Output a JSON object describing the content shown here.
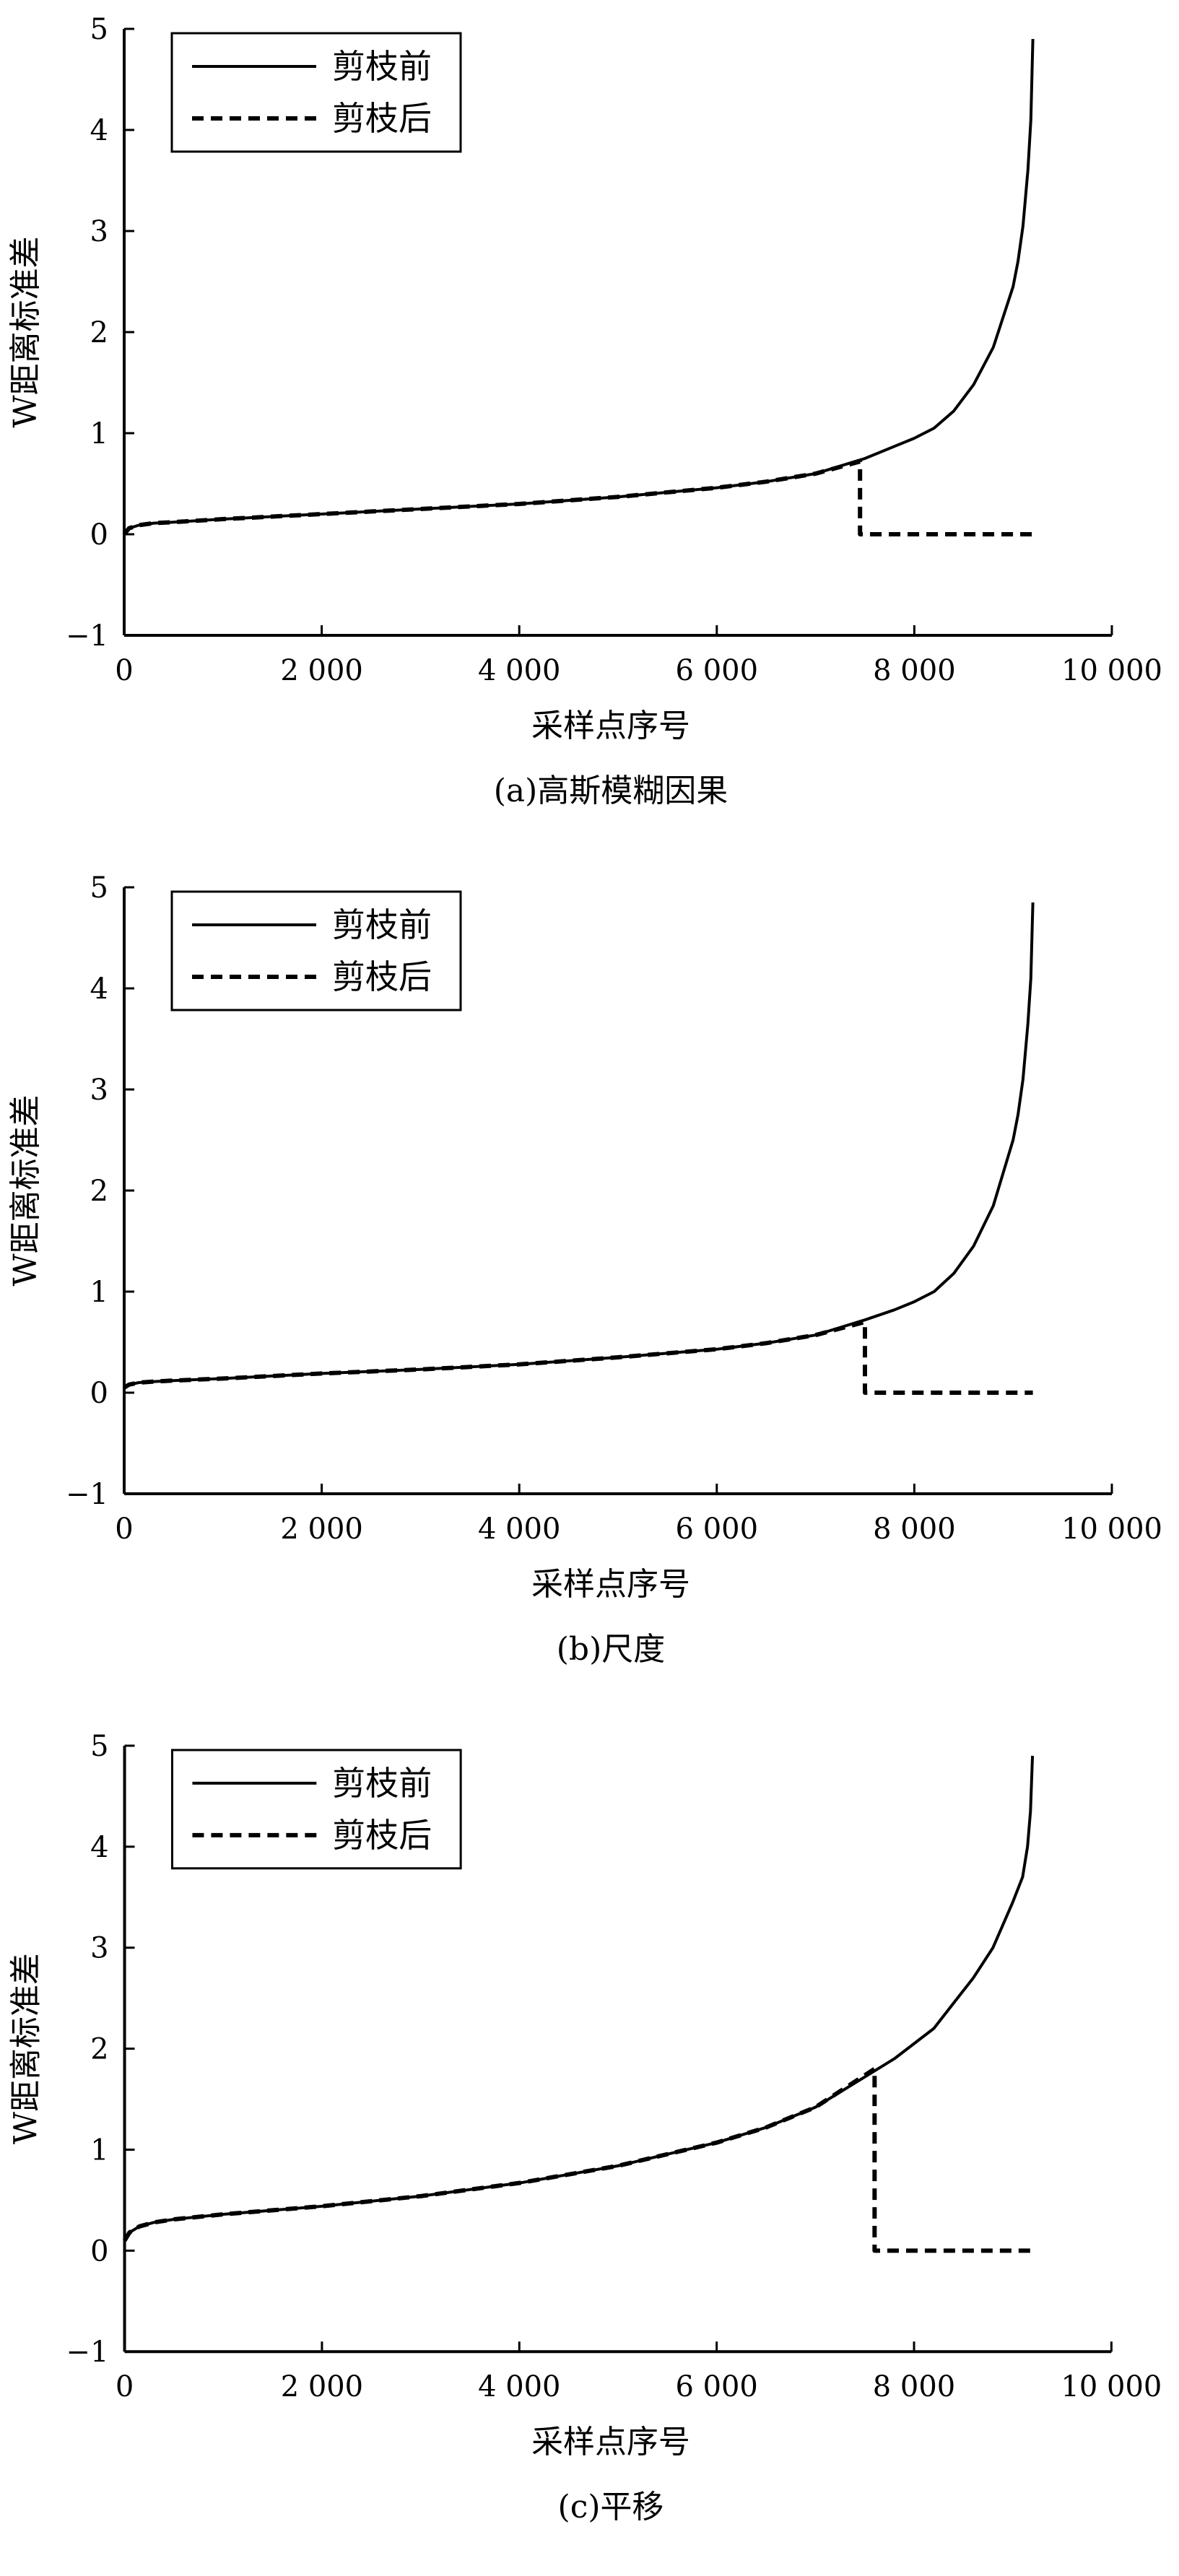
{
  "chart_data": [
    {
      "type": "line",
      "caption": "(a)高斯模糊因果",
      "xlabel": "采样点序号",
      "ylabel": "W距离标准差",
      "xlim": [
        0,
        10000
      ],
      "ylim": [
        -1,
        5
      ],
      "xticks": [
        0,
        2000,
        4000,
        6000,
        8000,
        10000
      ],
      "xtick_labels": [
        "0",
        "2 000",
        "4 000",
        "6 000",
        "8 000",
        "10 000"
      ],
      "yticks": [
        -1,
        0,
        1,
        2,
        3,
        4,
        5
      ],
      "ytick_labels": [
        "−1",
        "0",
        "1",
        "2",
        "3",
        "4",
        "5"
      ],
      "legend_position": "top-left",
      "grid": false,
      "series": [
        {
          "name": "剪枝前",
          "style": "solid",
          "x": [
            0,
            50,
            150,
            300,
            500,
            1000,
            2000,
            3000,
            4000,
            5000,
            6000,
            6500,
            7000,
            7500,
            7800,
            8000,
            8200,
            8400,
            8600,
            8800,
            9000,
            9050,
            9100,
            9150,
            9180,
            9200
          ],
          "y": [
            0.0,
            0.06,
            0.09,
            0.11,
            0.12,
            0.15,
            0.2,
            0.25,
            0.3,
            0.37,
            0.46,
            0.52,
            0.6,
            0.75,
            0.87,
            0.95,
            1.05,
            1.22,
            1.48,
            1.85,
            2.45,
            2.7,
            3.05,
            3.6,
            4.1,
            4.9
          ]
        },
        {
          "name": "剪枝后",
          "style": "dashed",
          "x": [
            0,
            50,
            150,
            300,
            500,
            1000,
            2000,
            3000,
            4000,
            5000,
            6000,
            6500,
            7000,
            7450,
            7450,
            9200
          ],
          "y": [
            0.0,
            0.06,
            0.09,
            0.11,
            0.12,
            0.15,
            0.2,
            0.25,
            0.3,
            0.37,
            0.46,
            0.52,
            0.6,
            0.72,
            0.0,
            0.0
          ]
        }
      ]
    },
    {
      "type": "line",
      "caption": "(b)尺度",
      "xlabel": "采样点序号",
      "ylabel": "W距离标准差",
      "xlim": [
        0,
        10000
      ],
      "ylim": [
        -1,
        5
      ],
      "xticks": [
        0,
        2000,
        4000,
        6000,
        8000,
        10000
      ],
      "xtick_labels": [
        "0",
        "2 000",
        "4 000",
        "6 000",
        "8 000",
        "10 000"
      ],
      "yticks": [
        -1,
        0,
        1,
        2,
        3,
        4,
        5
      ],
      "ytick_labels": [
        "−1",
        "0",
        "1",
        "2",
        "3",
        "4",
        "5"
      ],
      "legend_position": "top-left",
      "grid": false,
      "series": [
        {
          "name": "剪枝前",
          "style": "solid",
          "x": [
            0,
            50,
            150,
            300,
            500,
            1000,
            2000,
            3000,
            4000,
            5000,
            6000,
            6500,
            7000,
            7500,
            7800,
            8000,
            8200,
            8400,
            8600,
            8800,
            9000,
            9050,
            9100,
            9150,
            9180,
            9200
          ],
          "y": [
            0.05,
            0.08,
            0.1,
            0.11,
            0.12,
            0.14,
            0.19,
            0.23,
            0.28,
            0.35,
            0.43,
            0.49,
            0.57,
            0.72,
            0.82,
            0.9,
            1.0,
            1.18,
            1.45,
            1.85,
            2.5,
            2.75,
            3.1,
            3.65,
            4.1,
            4.85
          ]
        },
        {
          "name": "剪枝后",
          "style": "dashed",
          "x": [
            0,
            50,
            150,
            300,
            500,
            1000,
            2000,
            3000,
            4000,
            5000,
            6000,
            6500,
            7000,
            7500,
            7500,
            9200
          ],
          "y": [
            0.05,
            0.08,
            0.1,
            0.11,
            0.12,
            0.14,
            0.19,
            0.23,
            0.28,
            0.35,
            0.43,
            0.49,
            0.57,
            0.7,
            0.0,
            0.0
          ]
        }
      ]
    },
    {
      "type": "line",
      "caption": "(c)平移",
      "xlabel": "采样点序号",
      "ylabel": "W距离标准差",
      "xlim": [
        0,
        10000
      ],
      "ylim": [
        -1,
        5
      ],
      "xticks": [
        0,
        2000,
        4000,
        6000,
        8000,
        10000
      ],
      "xtick_labels": [
        "0",
        "2 000",
        "4 000",
        "6 000",
        "8 000",
        "10 000"
      ],
      "yticks": [
        -1,
        0,
        1,
        2,
        3,
        4,
        5
      ],
      "ytick_labels": [
        "−1",
        "0",
        "1",
        "2",
        "3",
        "4",
        "5"
      ],
      "legend_position": "top-left",
      "grid": false,
      "series": [
        {
          "name": "剪枝前",
          "style": "solid",
          "x": [
            0,
            50,
            150,
            300,
            500,
            1000,
            2000,
            3000,
            4000,
            5000,
            6000,
            6500,
            7000,
            7500,
            7800,
            8000,
            8200,
            8400,
            8600,
            8800,
            9000,
            9100,
            9150,
            9180,
            9200
          ],
          "y": [
            0.1,
            0.18,
            0.24,
            0.28,
            0.31,
            0.36,
            0.44,
            0.54,
            0.67,
            0.84,
            1.07,
            1.22,
            1.42,
            1.72,
            1.9,
            2.05,
            2.2,
            2.45,
            2.7,
            3.0,
            3.45,
            3.7,
            4.0,
            4.35,
            4.9
          ]
        },
        {
          "name": "剪枝后",
          "style": "dashed",
          "x": [
            0,
            50,
            150,
            300,
            500,
            1000,
            2000,
            3000,
            4000,
            5000,
            6000,
            6500,
            7000,
            7600,
            7600,
            9200
          ],
          "y": [
            0.1,
            0.18,
            0.24,
            0.28,
            0.31,
            0.36,
            0.44,
            0.54,
            0.67,
            0.84,
            1.07,
            1.22,
            1.42,
            1.8,
            0.0,
            0.0
          ]
        }
      ]
    }
  ]
}
